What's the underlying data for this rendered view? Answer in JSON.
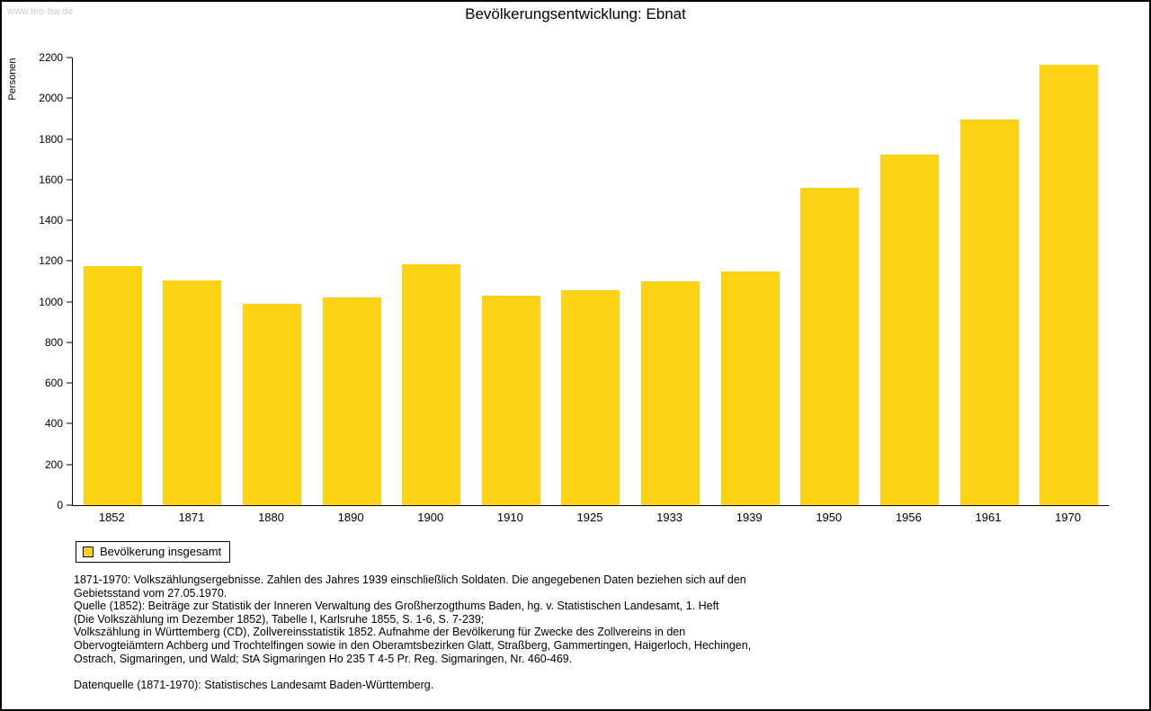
{
  "page": {
    "watermark": "www.leo-bw.de"
  },
  "chart_data": {
    "type": "bar",
    "title": "Bevölkerungsentwicklung: Ebnat",
    "xlabel": "",
    "ylabel": "Personen",
    "ylim": [
      0,
      2200
    ],
    "ytick_step": 200,
    "grid": false,
    "categories": [
      "1852",
      "1871",
      "1880",
      "1890",
      "1900",
      "1910",
      "1925",
      "1933",
      "1939",
      "1950",
      "1956",
      "1961",
      "1970"
    ],
    "values": [
      1175,
      1105,
      990,
      1020,
      1185,
      1030,
      1055,
      1100,
      1150,
      1560,
      1725,
      1895,
      2165
    ],
    "bar_color": "#FCD116",
    "legend": [
      {
        "label": "Bevölkerung insgesamt",
        "color": "#FCD116"
      }
    ],
    "legend_position": "bottom-left"
  },
  "footnotes": {
    "lines": [
      "1871-1970: Volkszählungsergebnisse. Zahlen des Jahres 1939 einschließlich Soldaten. Die angegebenen Daten beziehen sich auf den",
      "Gebietsstand vom 27.05.1970.",
      "Quelle (1852): Beiträge zur Statistik der Inneren Verwaltung des Großherzogthums Baden, hg. v. Statistischen Landesamt, 1. Heft",
      "(Die Volkszählung im Dezember 1852), Tabelle I, Karlsruhe 1855, S. 1-6, S. 7-239;",
      "Volkszählung in Württemberg (CD), Zollvereinsstatistik 1852. Aufnahme der Bevölkerung für Zwecke des Zollvereins in den",
      "Obervogteiämtern Achberg und Trochtelfingen sowie in den Oberamtsbezirken Glatt, Straßberg, Gammertingen, Haigerloch, Hechingen,",
      "Ostrach, Sigmaringen, und Wald; StA Sigmaringen Ho 235 T 4-5 Pr. Reg. Sigmaringen, Nr. 460-469.",
      "",
      "Datenquelle (1871-1970): Statistisches Landesamt Baden-Württemberg."
    ]
  }
}
